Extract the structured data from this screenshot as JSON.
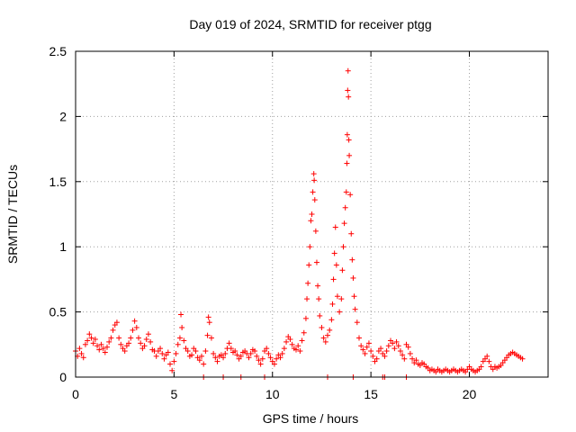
{
  "chart_data": {
    "type": "scatter",
    "title": "Day 019 of 2024, SRMTID for receiver ptgg",
    "xlabel": "GPS time / hours",
    "ylabel": "SRMTID / TECUs",
    "xlim": [
      0,
      24
    ],
    "ylim": [
      0,
      2.5
    ],
    "xticks": [
      0,
      5,
      10,
      15,
      20
    ],
    "xtick_labels": [
      "0",
      "5",
      "10",
      "15",
      "20"
    ],
    "yticks": [
      0,
      0.5,
      1,
      1.5,
      2,
      2.5
    ],
    "ytick_labels": [
      "0",
      "0.5",
      "1",
      "1.5",
      "2",
      "2.5"
    ],
    "grid": true,
    "marker": "+",
    "marker_color": "#ff0000",
    "series": [
      {
        "name": "SRMTID",
        "points": [
          [
            0.0,
            0.2
          ],
          [
            0.1,
            0.16
          ],
          [
            0.2,
            0.22
          ],
          [
            0.3,
            0.18
          ],
          [
            0.4,
            0.15
          ],
          [
            0.5,
            0.25
          ],
          [
            0.6,
            0.28
          ],
          [
            0.7,
            0.33
          ],
          [
            0.8,
            0.3
          ],
          [
            0.9,
            0.26
          ],
          [
            1.0,
            0.29
          ],
          [
            1.1,
            0.24
          ],
          [
            1.2,
            0.21
          ],
          [
            1.3,
            0.25
          ],
          [
            1.4,
            0.22
          ],
          [
            1.5,
            0.19
          ],
          [
            1.6,
            0.23
          ],
          [
            1.7,
            0.27
          ],
          [
            1.8,
            0.3
          ],
          [
            1.9,
            0.36
          ],
          [
            2.0,
            0.4
          ],
          [
            2.1,
            0.42
          ],
          [
            2.2,
            0.3
          ],
          [
            2.3,
            0.25
          ],
          [
            2.4,
            0.22
          ],
          [
            2.5,
            0.2
          ],
          [
            2.6,
            0.24
          ],
          [
            2.7,
            0.26
          ],
          [
            2.8,
            0.3
          ],
          [
            2.9,
            0.36
          ],
          [
            3.0,
            0.43
          ],
          [
            3.1,
            0.38
          ],
          [
            3.2,
            0.3
          ],
          [
            3.3,
            0.26
          ],
          [
            3.4,
            0.22
          ],
          [
            3.5,
            0.24
          ],
          [
            3.6,
            0.29
          ],
          [
            3.7,
            0.33
          ],
          [
            3.8,
            0.27
          ],
          [
            3.9,
            0.21
          ],
          [
            4.0,
            0.2
          ],
          [
            4.1,
            0.16
          ],
          [
            4.2,
            0.2
          ],
          [
            4.3,
            0.22
          ],
          [
            4.4,
            0.18
          ],
          [
            4.5,
            0.14
          ],
          [
            4.6,
            0.17
          ],
          [
            4.7,
            0.19
          ],
          [
            4.8,
            0.1
          ],
          [
            4.9,
            0.05
          ],
          [
            5.0,
            0.12
          ],
          [
            5.1,
            0.18
          ],
          [
            5.2,
            0.25
          ],
          [
            5.3,
            0.3
          ],
          [
            5.35,
            0.48
          ],
          [
            5.4,
            0.38
          ],
          [
            5.5,
            0.28
          ],
          [
            5.6,
            0.22
          ],
          [
            5.7,
            0.2
          ],
          [
            5.8,
            0.16
          ],
          [
            5.9,
            0.17
          ],
          [
            6.0,
            0.22
          ],
          [
            6.1,
            0.2
          ],
          [
            6.2,
            0.15
          ],
          [
            6.3,
            0.13
          ],
          [
            6.4,
            0.16
          ],
          [
            6.5,
            0.1
          ],
          [
            6.6,
            0.2
          ],
          [
            6.7,
            0.32
          ],
          [
            6.75,
            0.46
          ],
          [
            6.8,
            0.42
          ],
          [
            6.9,
            0.3
          ],
          [
            7.0,
            0.18
          ],
          [
            7.1,
            0.15
          ],
          [
            7.2,
            0.12
          ],
          [
            7.3,
            0.16
          ],
          [
            7.4,
            0.17
          ],
          [
            7.5,
            0.15
          ],
          [
            7.6,
            0.18
          ],
          [
            7.7,
            0.22
          ],
          [
            7.8,
            0.26
          ],
          [
            7.9,
            0.22
          ],
          [
            8.0,
            0.19
          ],
          [
            8.1,
            0.2
          ],
          [
            8.2,
            0.17
          ],
          [
            8.3,
            0.14
          ],
          [
            8.4,
            0.16
          ],
          [
            8.5,
            0.19
          ],
          [
            8.6,
            0.2
          ],
          [
            8.7,
            0.18
          ],
          [
            8.8,
            0.15
          ],
          [
            8.9,
            0.18
          ],
          [
            9.0,
            0.21
          ],
          [
            9.1,
            0.2
          ],
          [
            9.2,
            0.16
          ],
          [
            9.3,
            0.13
          ],
          [
            9.4,
            0.1
          ],
          [
            9.5,
            0.14
          ],
          [
            9.6,
            0.2
          ],
          [
            9.7,
            0.22
          ],
          [
            9.8,
            0.18
          ],
          [
            9.9,
            0.15
          ],
          [
            10.0,
            0.12
          ],
          [
            10.1,
            0.1
          ],
          [
            10.2,
            0.14
          ],
          [
            10.3,
            0.17
          ],
          [
            10.4,
            0.15
          ],
          [
            10.5,
            0.18
          ],
          [
            10.6,
            0.22
          ],
          [
            10.7,
            0.27
          ],
          [
            10.8,
            0.31
          ],
          [
            10.9,
            0.29
          ],
          [
            11.0,
            0.25
          ],
          [
            11.1,
            0.22
          ],
          [
            11.2,
            0.21
          ],
          [
            11.3,
            0.24
          ],
          [
            11.4,
            0.2
          ],
          [
            11.5,
            0.28
          ],
          [
            11.6,
            0.34
          ],
          [
            11.7,
            0.45
          ],
          [
            11.75,
            0.6
          ],
          [
            11.8,
            0.72
          ],
          [
            11.85,
            0.86
          ],
          [
            11.9,
            1.0
          ],
          [
            11.95,
            1.2
          ],
          [
            12.0,
            1.25
          ],
          [
            12.05,
            1.42
          ],
          [
            12.1,
            1.56
          ],
          [
            12.12,
            1.51
          ],
          [
            12.15,
            1.36
          ],
          [
            12.2,
            1.12
          ],
          [
            12.25,
            0.88
          ],
          [
            12.3,
            0.7
          ],
          [
            12.35,
            0.6
          ],
          [
            12.4,
            0.47
          ],
          [
            12.5,
            0.38
          ],
          [
            12.6,
            0.3
          ],
          [
            12.7,
            0.27
          ],
          [
            12.8,
            0.32
          ],
          [
            12.9,
            0.36
          ],
          [
            13.0,
            0.44
          ],
          [
            13.05,
            0.56
          ],
          [
            13.1,
            0.75
          ],
          [
            13.15,
            0.95
          ],
          [
            13.2,
            1.15
          ],
          [
            13.25,
            0.86
          ],
          [
            13.3,
            0.62
          ],
          [
            13.4,
            0.5
          ],
          [
            13.5,
            0.6
          ],
          [
            13.55,
            0.82
          ],
          [
            13.6,
            1.0
          ],
          [
            13.65,
            1.18
          ],
          [
            13.7,
            1.3
          ],
          [
            13.75,
            1.42
          ],
          [
            13.78,
            1.64
          ],
          [
            13.8,
            1.86
          ],
          [
            13.82,
            2.2
          ],
          [
            13.84,
            2.35
          ],
          [
            13.86,
            2.15
          ],
          [
            13.88,
            1.82
          ],
          [
            13.9,
            1.7
          ],
          [
            13.95,
            1.4
          ],
          [
            14.0,
            1.1
          ],
          [
            14.05,
            0.9
          ],
          [
            14.1,
            0.76
          ],
          [
            14.15,
            0.62
          ],
          [
            14.2,
            0.52
          ],
          [
            14.3,
            0.42
          ],
          [
            14.4,
            0.3
          ],
          [
            14.5,
            0.24
          ],
          [
            14.6,
            0.21
          ],
          [
            14.7,
            0.18
          ],
          [
            14.8,
            0.23
          ],
          [
            14.9,
            0.26
          ],
          [
            15.0,
            0.2
          ],
          [
            15.1,
            0.16
          ],
          [
            15.2,
            0.12
          ],
          [
            15.3,
            0.14
          ],
          [
            15.4,
            0.2
          ],
          [
            15.5,
            0.22
          ],
          [
            15.6,
            0.18
          ],
          [
            15.7,
            0.16
          ],
          [
            15.8,
            0.2
          ],
          [
            15.9,
            0.24
          ],
          [
            16.0,
            0.28
          ],
          [
            16.1,
            0.26
          ],
          [
            16.2,
            0.22
          ],
          [
            16.3,
            0.27
          ],
          [
            16.4,
            0.24
          ],
          [
            16.5,
            0.2
          ],
          [
            16.6,
            0.17
          ],
          [
            16.7,
            0.14
          ],
          [
            16.8,
            0.25
          ],
          [
            16.9,
            0.23
          ],
          [
            17.0,
            0.18
          ],
          [
            17.1,
            0.14
          ],
          [
            17.2,
            0.11
          ],
          [
            17.3,
            0.13
          ],
          [
            17.4,
            0.1
          ],
          [
            17.5,
            0.09
          ],
          [
            17.6,
            0.11
          ],
          [
            17.7,
            0.1
          ],
          [
            17.8,
            0.08
          ],
          [
            17.9,
            0.07
          ],
          [
            18.0,
            0.05
          ],
          [
            18.1,
            0.06
          ],
          [
            18.2,
            0.05
          ],
          [
            18.3,
            0.04
          ],
          [
            18.4,
            0.06
          ],
          [
            18.5,
            0.05
          ],
          [
            18.6,
            0.04
          ],
          [
            18.7,
            0.05
          ],
          [
            18.8,
            0.06
          ],
          [
            18.9,
            0.05
          ],
          [
            19.0,
            0.04
          ],
          [
            19.1,
            0.05
          ],
          [
            19.2,
            0.06
          ],
          [
            19.3,
            0.05
          ],
          [
            19.4,
            0.04
          ],
          [
            19.5,
            0.05
          ],
          [
            19.6,
            0.06
          ],
          [
            19.7,
            0.05
          ],
          [
            19.8,
            0.04
          ],
          [
            19.9,
            0.06
          ],
          [
            20.0,
            0.08
          ],
          [
            20.1,
            0.06
          ],
          [
            20.2,
            0.05
          ],
          [
            20.3,
            0.04
          ],
          [
            20.4,
            0.05
          ],
          [
            20.5,
            0.06
          ],
          [
            20.6,
            0.08
          ],
          [
            20.7,
            0.12
          ],
          [
            20.8,
            0.14
          ],
          [
            20.9,
            0.16
          ],
          [
            21.0,
            0.12
          ],
          [
            21.1,
            0.08
          ],
          [
            21.2,
            0.06
          ],
          [
            21.3,
            0.08
          ],
          [
            21.4,
            0.07
          ],
          [
            21.5,
            0.08
          ],
          [
            21.6,
            0.09
          ],
          [
            21.7,
            0.11
          ],
          [
            21.8,
            0.13
          ],
          [
            21.9,
            0.15
          ],
          [
            22.0,
            0.17
          ],
          [
            22.1,
            0.18
          ],
          [
            22.2,
            0.19
          ],
          [
            22.3,
            0.18
          ],
          [
            22.4,
            0.17
          ],
          [
            22.5,
            0.16
          ],
          [
            22.6,
            0.15
          ],
          [
            22.7,
            0.14
          ],
          [
            6.5,
            0.0
          ],
          [
            7.5,
            0.0
          ],
          [
            8.4,
            0.0
          ],
          [
            9.6,
            0.0
          ],
          [
            12.8,
            0.0
          ],
          [
            14.1,
            0.0
          ],
          [
            15.6,
            0.0
          ],
          [
            15.7,
            0.0
          ],
          [
            16.8,
            0.0
          ]
        ]
      }
    ]
  }
}
